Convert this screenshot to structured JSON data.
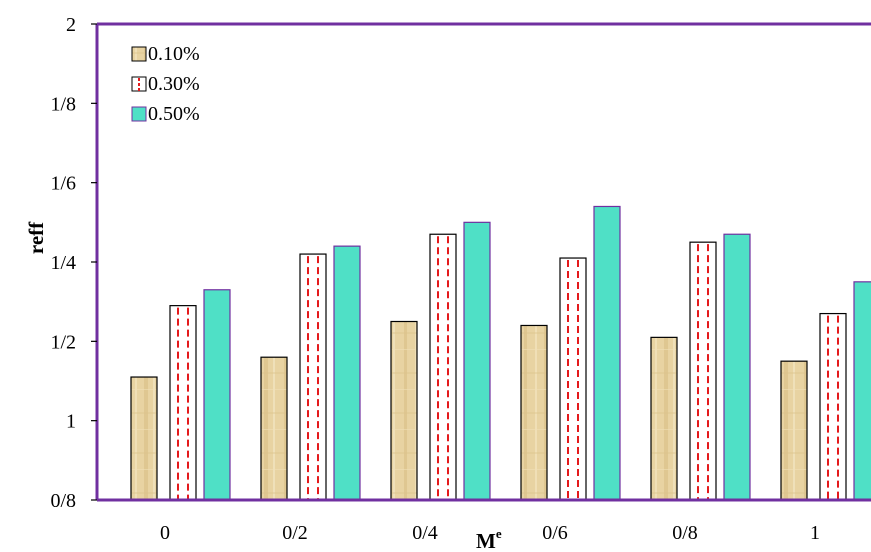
{
  "chart_data": {
    "type": "bar",
    "categories": [
      "0",
      "0/2",
      "0/4",
      "0/6",
      "0/8",
      "1"
    ],
    "series": [
      {
        "name": "0.10%",
        "values": [
          1.31,
          1.36,
          1.45,
          1.44,
          1.41,
          1.35
        ],
        "style": "texture",
        "color": "#e6cf9a"
      },
      {
        "name": "0.30%",
        "values": [
          1.49,
          1.62,
          1.67,
          1.61,
          1.65,
          1.47
        ],
        "style": "dashed",
        "color": "#e41a1c"
      },
      {
        "name": "0.50%",
        "values": [
          1.53,
          1.64,
          1.7,
          1.74,
          1.67,
          1.55
        ],
        "style": "solid",
        "color": "#4fe0c6"
      }
    ],
    "y_ticks": [
      {
        "value": 1.0,
        "label": "0/8"
      },
      {
        "value": 1.2,
        "label": "1"
      },
      {
        "value": 1.4,
        "label": "1/2"
      },
      {
        "value": 1.6,
        "label": "1/4"
      },
      {
        "value": 1.8,
        "label": "1/6"
      },
      {
        "value": 2.0,
        "label": "1/8"
      },
      {
        "value": 2.2,
        "label": "2"
      }
    ],
    "ylim": [
      1.0,
      2.2
    ],
    "xlabel": "M",
    "xlabel_sup": "e",
    "ylabel": "reff",
    "legend_position": "top-left",
    "axis_color": "#7030a0",
    "grid": false
  }
}
